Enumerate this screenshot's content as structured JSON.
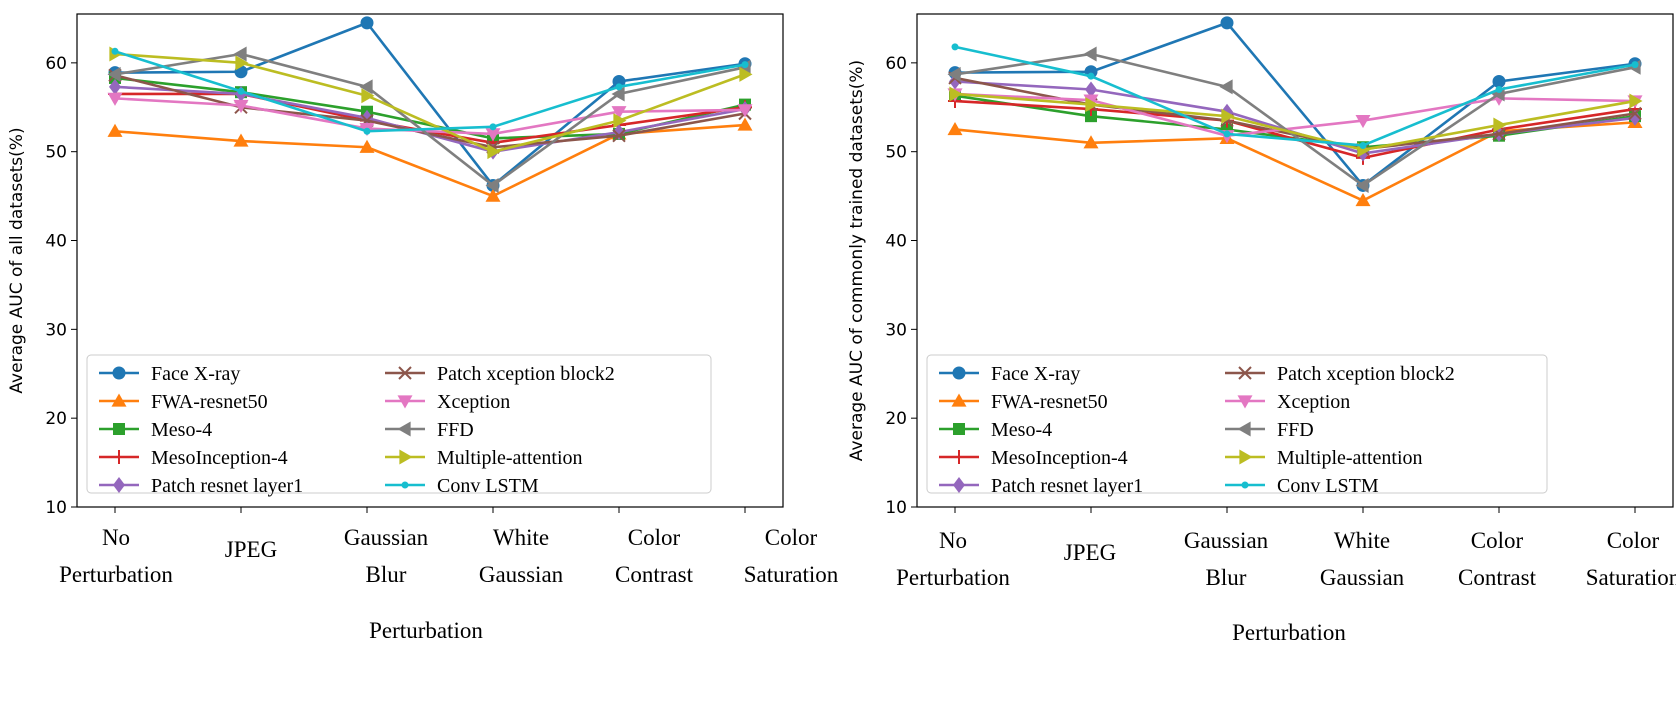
{
  "chart_data": [
    {
      "type": "line",
      "ylabel": "Average AUC of all datasets(%)",
      "xlabel": "Perturbation",
      "ylim": [
        10,
        65.5
      ],
      "yticks": [
        10,
        20,
        30,
        40,
        50,
        60
      ],
      "categories": [
        [
          "No",
          "Perturbation"
        ],
        [
          "JPEG"
        ],
        [
          "Gaussian",
          "Blur"
        ],
        [
          "White",
          "Gaussian"
        ],
        [
          "Color",
          "Contrast"
        ],
        [
          "Color",
          "Saturation"
        ]
      ],
      "legend_position": "lower-left",
      "series": [
        {
          "name": "Face X-ray",
          "color": "#1f77b4",
          "marker": "circle",
          "values": [
            58.9,
            59.0,
            64.5,
            46.2,
            57.9,
            59.9
          ]
        },
        {
          "name": "FWA-resnet50",
          "color": "#ff7f0e",
          "marker": "triangle-up",
          "values": [
            52.3,
            51.2,
            50.5,
            45.0,
            52.0,
            53.0
          ]
        },
        {
          "name": "Meso-4",
          "color": "#2ca02c",
          "marker": "square",
          "values": [
            58.3,
            56.7,
            54.5,
            51.5,
            52.0,
            55.3
          ]
        },
        {
          "name": "MesoInception-4",
          "color": "#d62728",
          "marker": "plus",
          "values": [
            56.5,
            56.5,
            53.5,
            51.0,
            53.0,
            55.0
          ]
        },
        {
          "name": "Patch resnet layer1",
          "color": "#9467bd",
          "marker": "diamond",
          "values": [
            57.3,
            56.5,
            53.8,
            50.0,
            52.2,
            54.8
          ]
        },
        {
          "name": "Patch xception block2",
          "color": "#8c564b",
          "marker": "x",
          "values": [
            58.6,
            55.0,
            53.5,
            50.5,
            51.8,
            54.3
          ]
        },
        {
          "name": "Xception",
          "color": "#e377c2",
          "marker": "triangle-down",
          "values": [
            56.0,
            55.2,
            52.6,
            52.0,
            54.5,
            54.7
          ]
        },
        {
          "name": "FFD",
          "color": "#7f7f7f",
          "marker": "triangle-left",
          "values": [
            58.7,
            61.0,
            57.3,
            46.2,
            56.5,
            59.5
          ]
        },
        {
          "name": "Multiple-attention",
          "color": "#bcbd22",
          "marker": "triangle-right",
          "values": [
            61.0,
            60.0,
            56.3,
            50.0,
            53.5,
            58.7
          ]
        },
        {
          "name": "Conv LSTM",
          "color": "#17becf",
          "marker": "point",
          "values": [
            61.3,
            56.8,
            52.3,
            52.8,
            57.3,
            59.8
          ]
        }
      ]
    },
    {
      "type": "line",
      "ylabel": "Average AUC of commonly trained datasets(%)",
      "xlabel": "Perturbation",
      "ylim": [
        10,
        65.5
      ],
      "yticks": [
        10,
        20,
        30,
        40,
        50,
        60
      ],
      "categories": [
        [
          "No",
          "Perturbation"
        ],
        [
          "JPEG"
        ],
        [
          "Gaussian",
          "Blur"
        ],
        [
          "White",
          "Gaussian"
        ],
        [
          "Color",
          "Contrast"
        ],
        [
          "Color",
          "Saturation"
        ]
      ],
      "legend_position": "lower-left",
      "series": [
        {
          "name": "Face X-ray",
          "color": "#1f77b4",
          "marker": "circle",
          "values": [
            58.9,
            59.0,
            64.5,
            46.2,
            57.9,
            59.9
          ]
        },
        {
          "name": "FWA-resnet50",
          "color": "#ff7f0e",
          "marker": "triangle-up",
          "values": [
            52.5,
            51.0,
            51.5,
            44.5,
            52.3,
            53.3
          ]
        },
        {
          "name": "Meso-4",
          "color": "#2ca02c",
          "marker": "square",
          "values": [
            56.3,
            54.0,
            52.5,
            50.5,
            51.8,
            54.0
          ]
        },
        {
          "name": "MesoInception-4",
          "color": "#d62728",
          "marker": "plus",
          "values": [
            55.7,
            54.8,
            53.5,
            49.3,
            52.5,
            54.8
          ]
        },
        {
          "name": "Patch resnet layer1",
          "color": "#9467bd",
          "marker": "diamond",
          "values": [
            57.9,
            57.0,
            54.5,
            49.8,
            52.0,
            53.8
          ]
        },
        {
          "name": "Patch xception block2",
          "color": "#8c564b",
          "marker": "x",
          "values": [
            58.3,
            55.3,
            53.5,
            50.3,
            52.0,
            54.3
          ]
        },
        {
          "name": "Xception",
          "color": "#e377c2",
          "marker": "triangle-down",
          "values": [
            56.5,
            55.8,
            51.8,
            53.5,
            56.0,
            55.7
          ]
        },
        {
          "name": "FFD",
          "color": "#7f7f7f",
          "marker": "triangle-left",
          "values": [
            58.7,
            61.0,
            57.3,
            46.2,
            56.5,
            59.5
          ]
        },
        {
          "name": "Multiple-attention",
          "color": "#bcbd22",
          "marker": "triangle-right",
          "values": [
            56.5,
            55.3,
            54.0,
            50.2,
            53.0,
            55.7
          ]
        },
        {
          "name": "Conv LSTM",
          "color": "#17becf",
          "marker": "point",
          "values": [
            61.8,
            58.5,
            52.0,
            50.7,
            57.0,
            59.8
          ]
        }
      ]
    }
  ]
}
